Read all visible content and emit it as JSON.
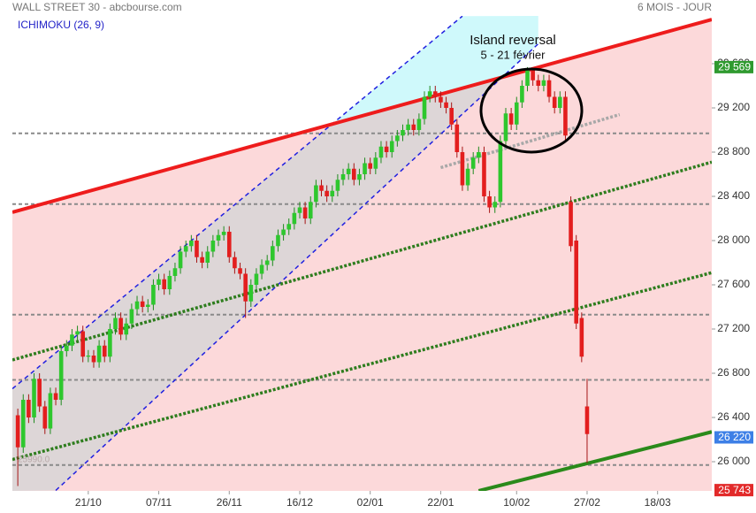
{
  "chart_data": {
    "type": "candlestick",
    "title": "WALL STREET 30 - abcbourse.com",
    "period": "6 MOIS - JOUR",
    "indicator": "ICHIMOKU (26, 9)",
    "annotation_title": "Island reversal",
    "annotation_subtitle": "5 - 21 février",
    "low_note": "25990.0",
    "up_color": "#2ec72e",
    "down_color": "#e31e1e",
    "xlim": [
      -1,
      128
    ],
    "ylim": [
      25736,
      30032
    ],
    "xticks": [
      {
        "value": 13,
        "label": "21/10"
      },
      {
        "value": 26,
        "label": "07/11"
      },
      {
        "value": 39,
        "label": "26/11"
      },
      {
        "value": 52,
        "label": "16/12"
      },
      {
        "value": 65,
        "label": "02/01"
      },
      {
        "value": 78,
        "label": "22/01"
      },
      {
        "value": 92,
        "label": "10/02"
      },
      {
        "value": 105,
        "label": "27/02"
      },
      {
        "value": 118,
        "label": "18/03"
      }
    ],
    "yticks": [
      {
        "value": 26000,
        "label": "26 000"
      },
      {
        "value": 26400,
        "label": "26 400"
      },
      {
        "value": 26800,
        "label": "26 800"
      },
      {
        "value": 27200,
        "label": "27 200"
      },
      {
        "value": 27600,
        "label": "27 600"
      },
      {
        "value": 28000,
        "label": "28 000"
      },
      {
        "value": 28400,
        "label": "28 400"
      },
      {
        "value": 28800,
        "label": "28 800"
      },
      {
        "value": 29200,
        "label": "29 200"
      },
      {
        "value": 29600,
        "label": "29 600"
      }
    ],
    "open": [
      26420,
      26130,
      26560,
      26400,
      26750,
      26500,
      26300,
      26620,
      26560,
      27000,
      27050,
      27150,
      27180,
      26950,
      26960,
      26900,
      27050,
      26950,
      27200,
      27300,
      27150,
      27250,
      27380,
      27450,
      27400,
      27420,
      27600,
      27650,
      27560,
      27680,
      27750,
      27900,
      27950,
      28000,
      27850,
      27800,
      27900,
      28000,
      28050,
      28080,
      27850,
      27750,
      27700,
      27450,
      27600,
      27700,
      27780,
      27820,
      27950,
      28050,
      28100,
      28150,
      28250,
      28300,
      28200,
      28350,
      28500,
      28450,
      28400,
      28450,
      28550,
      28600,
      28650,
      28550,
      28600,
      28700,
      28650,
      28750,
      28850,
      28800,
      28900,
      28950,
      29000,
      29050,
      29000,
      29100,
      29300,
      29350,
      29300,
      29250,
      29200,
      29050,
      28800,
      28500,
      28650,
      28750,
      28800,
      28400,
      28300,
      28350,
      28900,
      29150,
      29050,
      29250,
      29400,
      29550,
      29450,
      29400,
      29450,
      29300,
      29200,
      29300,
      28350,
      28000,
      27300,
      26500
    ],
    "high": [
      26480,
      26610,
      26610,
      26800,
      26800,
      26550,
      26670,
      26670,
      27050,
      27100,
      27200,
      27230,
      27230,
      27010,
      27010,
      27100,
      27100,
      27250,
      27350,
      27350,
      27300,
      27430,
      27500,
      27500,
      27470,
      27650,
      27700,
      27700,
      27730,
      27800,
      27950,
      28000,
      28050,
      28050,
      27900,
      27950,
      28050,
      28100,
      28130,
      28130,
      27900,
      27800,
      27750,
      27650,
      27750,
      27830,
      27870,
      28000,
      28100,
      28150,
      28200,
      28300,
      28350,
      28350,
      28400,
      28550,
      28550,
      28500,
      28500,
      28600,
      28650,
      28700,
      28700,
      28650,
      28750,
      28750,
      28800,
      28900,
      28900,
      28950,
      29000,
      29050,
      29100,
      29100,
      29150,
      29350,
      29400,
      29400,
      29350,
      29300,
      29250,
      29100,
      28850,
      28700,
      28800,
      28850,
      28850,
      28450,
      28400,
      28950,
      29200,
      29200,
      29300,
      29450,
      29569,
      29560,
      29500,
      29500,
      29500,
      29350,
      29350,
      29350,
      28400,
      28050,
      27350,
      26750
    ],
    "low": [
      25780,
      26080,
      26350,
      26350,
      26450,
      26250,
      26250,
      26510,
      26510,
      26950,
      27000,
      27100,
      26900,
      26900,
      26850,
      26850,
      26900,
      26900,
      27150,
      27100,
      27100,
      27200,
      27330,
      27350,
      27350,
      27370,
      27550,
      27510,
      27510,
      27630,
      27700,
      27850,
      27900,
      27800,
      27750,
      27750,
      27850,
      27950,
      28000,
      27800,
      27700,
      27650,
      27300,
      27400,
      27550,
      27650,
      27730,
      27770,
      27900,
      28000,
      28050,
      28100,
      28200,
      28150,
      28150,
      28300,
      28400,
      28350,
      28350,
      28400,
      28500,
      28550,
      28500,
      28500,
      28550,
      28600,
      28600,
      28700,
      28750,
      28750,
      28850,
      28900,
      28950,
      28950,
      28950,
      29050,
      29250,
      29250,
      29200,
      29150,
      29000,
      28750,
      28450,
      28450,
      28600,
      28700,
      28350,
      28250,
      28250,
      28300,
      28850,
      29000,
      29000,
      29200,
      29350,
      29400,
      29350,
      29350,
      29250,
      29150,
      29150,
      28900,
      27900,
      27200,
      26900,
      25990
    ],
    "close": [
      26130,
      26560,
      26400,
      26750,
      26500,
      26300,
      26620,
      26560,
      27000,
      27050,
      27150,
      27180,
      26950,
      26960,
      26900,
      27050,
      26950,
      27200,
      27300,
      27150,
      27250,
      27380,
      27450,
      27400,
      27420,
      27600,
      27650,
      27560,
      27680,
      27750,
      27900,
      27950,
      28000,
      27850,
      27800,
      27900,
      28000,
      28050,
      28080,
      27850,
      27750,
      27700,
      27450,
      27600,
      27700,
      27780,
      27820,
      27950,
      28050,
      28100,
      28150,
      28250,
      28300,
      28200,
      28350,
      28500,
      28450,
      28400,
      28450,
      28550,
      28600,
      28650,
      28550,
      28600,
      28700,
      28650,
      28750,
      28850,
      28800,
      28900,
      28950,
      29000,
      29050,
      29000,
      29100,
      29300,
      29350,
      29300,
      29250,
      29200,
      29050,
      28800,
      28500,
      28650,
      28750,
      28800,
      28400,
      28300,
      28350,
      28900,
      29150,
      29050,
      29250,
      29400,
      29550,
      29450,
      29400,
      29450,
      29300,
      29200,
      29300,
      28950,
      27950,
      27250,
      26950,
      26250
    ],
    "hlines": [
      28970,
      28330,
      27330,
      26740,
      25970
    ],
    "resistance": {
      "color": "#ee1c1c",
      "x": [
        -1,
        128
      ],
      "y": [
        28256,
        30000
      ]
    },
    "channel": {
      "color": "#2020e0",
      "upper_x": [
        -1,
        82
      ],
      "upper_y": [
        26660,
        30030
      ],
      "lower_x": [
        7,
        96
      ],
      "lower_y": [
        25740,
        29780
      ]
    },
    "dotted_lines": [
      {
        "color": "#2e7d1e",
        "x": [
          -1,
          128
        ],
        "y": [
          26920,
          28710
        ]
      },
      {
        "color": "#2e7d1e",
        "x": [
          -1,
          128
        ],
        "y": [
          26020,
          27710
        ]
      },
      {
        "color": "#a8a8a8",
        "x": [
          78,
          111
        ],
        "y": [
          28660,
          29140
        ]
      }
    ],
    "support": {
      "color": "#2a8a1a",
      "x": [
        85,
        128
      ],
      "y": [
        25736,
        26270
      ]
    },
    "markers": [
      {
        "value": 29569,
        "label": "29 569",
        "color": "#2f9a2f"
      },
      {
        "value": 26220,
        "label": "26 220",
        "color": "#3d7fe6"
      },
      {
        "value": 25743,
        "label": "25 743",
        "color": "#e22a2a"
      }
    ]
  }
}
